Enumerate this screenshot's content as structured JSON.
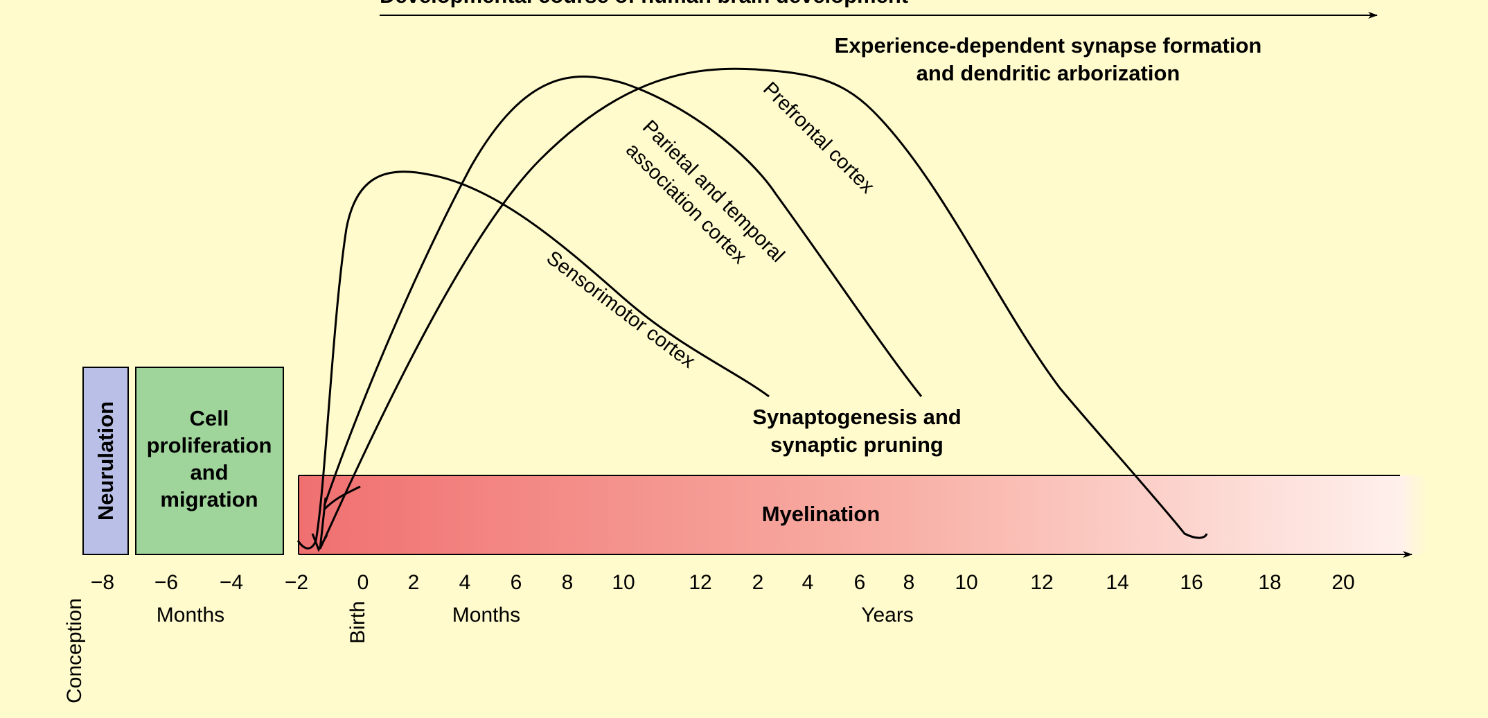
{
  "title": "Developmental course of human brain development",
  "boxes": {
    "neurulation": {
      "label": "Neurulation",
      "color": "#b9bfe6"
    },
    "cell_prolif": {
      "lines": [
        "Cell",
        "proliferation",
        "and",
        "migration"
      ],
      "color": "#9fd49a"
    },
    "myelination": {
      "label": "Myelination",
      "color_start": "#f07070",
      "color_end": "#fff0ec"
    }
  },
  "labels": {
    "experience_line1": "Experience-dependent synapse formation",
    "experience_line2": "and dendritic arborization",
    "synapto_line1": "Synaptogenesis and",
    "synapto_line2": "synaptic pruning",
    "sensorimotor": "Sensorimotor cortex",
    "parietal_line1": "Parietal and temporal",
    "parietal_line2": "association cortex",
    "prefrontal": "Prefrontal cortex"
  },
  "axis": {
    "ticks": [
      "−8",
      "−6",
      "−4",
      "−2",
      "0",
      "2",
      "4",
      "6",
      "8",
      "10",
      "12",
      "2",
      "4",
      "6",
      "8",
      "10",
      "12",
      "14",
      "16",
      "18",
      "20"
    ],
    "conception": "Conception",
    "birth": "Birth",
    "unit_months_prenatal": "Months",
    "unit_months_postnatal": "Months",
    "unit_years": "Years"
  }
}
